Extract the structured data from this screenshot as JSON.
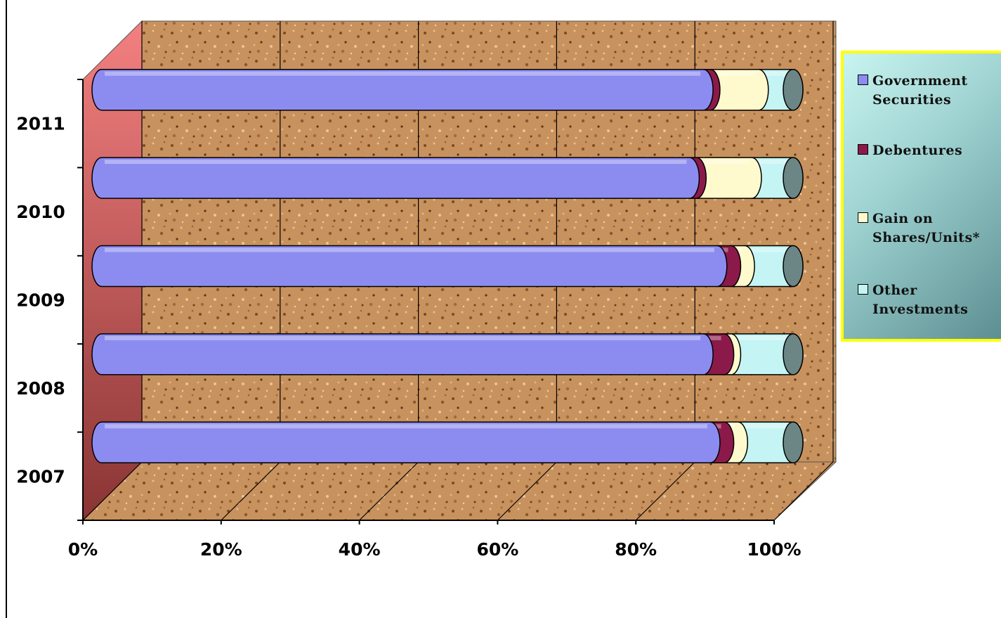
{
  "chart_data": {
    "type": "bar",
    "orientation": "horizontal",
    "stacked": "percent",
    "style": "3d-cylinder",
    "categories": [
      "2007",
      "2008",
      "2009",
      "2010",
      "2011"
    ],
    "series": [
      {
        "name": "Government\nSecurities",
        "color": "#8c8cf0",
        "values": [
          88,
          87,
          89,
          85,
          87
        ]
      },
      {
        "name": "Debentures",
        "color": "#8b1a4a",
        "values": [
          2,
          3,
          2,
          1,
          1
        ]
      },
      {
        "name": "Gain on\nShares/Units*",
        "color": "#fffacd",
        "values": [
          2,
          1,
          2,
          8,
          7
        ]
      },
      {
        "name": "Other\nInvestments",
        "color": "#c4f4f4",
        "values": [
          8,
          9,
          7,
          6,
          5
        ]
      }
    ],
    "xticks": [
      "0%",
      "20%",
      "40%",
      "60%",
      "80%",
      "100%"
    ],
    "xlim": [
      0,
      100
    ],
    "grid": true,
    "legend_position": "right"
  }
}
